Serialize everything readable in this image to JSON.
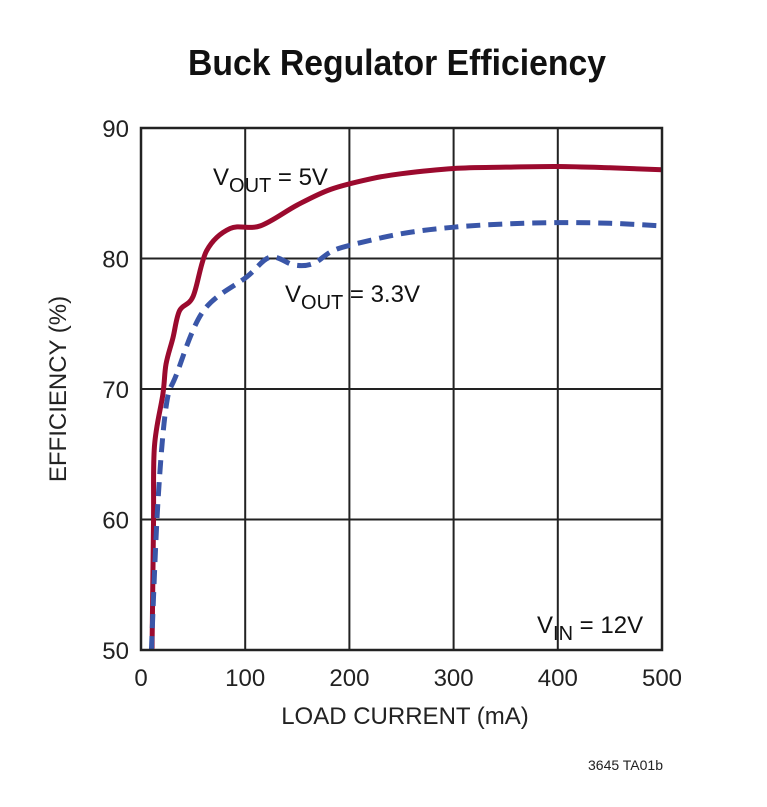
{
  "chart_data": {
    "type": "line",
    "title": "Buck Regulator Efficiency",
    "xlabel": "LOAD CURRENT (mA)",
    "ylabel": "EFFICIENCY  (%)",
    "xlim": [
      0,
      500
    ],
    "ylim": [
      50,
      90
    ],
    "xticks": [
      "0",
      "100",
      "200",
      "300",
      "400",
      "500"
    ],
    "yticks": [
      "50",
      "60",
      "70",
      "80",
      "90"
    ],
    "grid": true,
    "series": [
      {
        "name": "VOUT = 5V",
        "label_main": "V",
        "label_sub": "OUT",
        "label_rest": " = 5V",
        "color": "#9b0a2e",
        "style": "solid",
        "x": [
          10.6,
          12,
          12.9,
          21,
          24,
          30.6,
          37,
          50,
          63,
          85.5,
          114.5,
          150,
          182,
          220,
          250,
          300,
          350,
          400,
          450,
          500
        ],
        "y": [
          50.1,
          59.7,
          65.6,
          69.6,
          71.9,
          73.9,
          76,
          77.1,
          80.6,
          82.3,
          82.5,
          84.1,
          85.3,
          86.1,
          86.5,
          86.9,
          87.0,
          87.05,
          86.95,
          86.8
        ]
      },
      {
        "name": "VOUT = 3.3V",
        "label_main": "V",
        "label_sub": "OUT",
        "label_rest": " = 3.3V",
        "color": "#3a56a8",
        "style": "dashed",
        "x": [
          10,
          16,
          24,
          34,
          60,
          101.6,
          124,
          147,
          165,
          182,
          200,
          250,
          300,
          350,
          400,
          450,
          500
        ],
        "y": [
          50,
          61,
          68.6,
          71.1,
          76,
          78.6,
          80.1,
          79.5,
          79.6,
          80.5,
          81.0,
          81.9,
          82.4,
          82.65,
          82.75,
          82.7,
          82.5
        ]
      }
    ],
    "annotations": [
      {
        "main": "V",
        "sub": "IN",
        "rest": " = 12V"
      }
    ],
    "footnote": "3645 TA01b"
  }
}
